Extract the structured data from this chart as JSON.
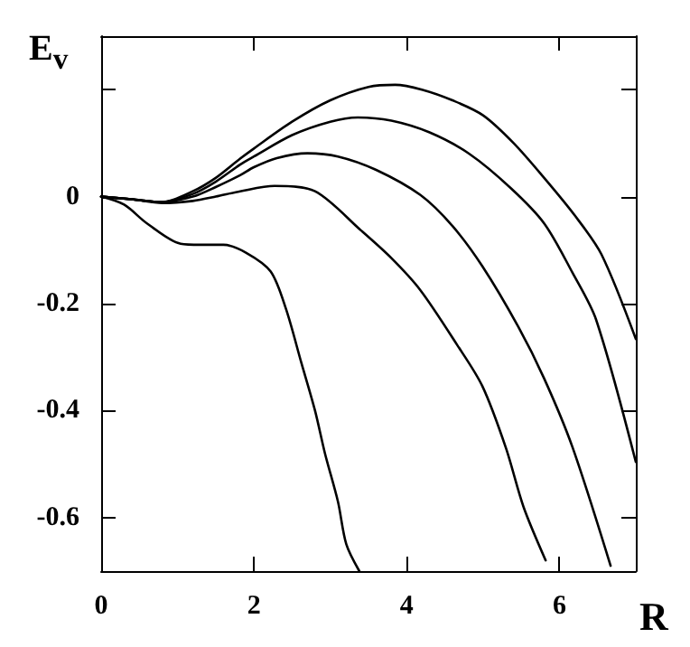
{
  "chart_data": {
    "type": "line",
    "xlabel": "R",
    "ylabel": "E$_{v}$",
    "xlim": [
      0,
      7
    ],
    "ylim": [
      -0.7,
      0.3
    ],
    "xticks": [
      0,
      2,
      4,
      6
    ],
    "yticks": [
      {
        "value": -0.6,
        "label": "-0.6"
      },
      {
        "value": -0.4,
        "label": "-0.4"
      },
      {
        "value": -0.2,
        "label": "-0.2"
      },
      0,
      {
        "value": 0.2,
        "label": null
      }
    ],
    "grid": false,
    "marker": "none",
    "line_style": "solid",
    "series": [
      {
        "color": "#000000",
        "x": [
          0,
          0.4,
          0.8,
          1.2,
          1.5,
          1.82,
          2,
          2.5,
          3,
          3.5,
          3.85,
          4.2,
          4.6,
          5,
          5.4,
          5.8,
          6.2,
          6.55,
          7
        ],
        "values": [
          0,
          -0.005,
          -0.01,
          0.01,
          0.035,
          0.071,
          0.09,
          0.14,
          0.18,
          0.205,
          0.209,
          0.2,
          0.18,
          0.152,
          0.1,
          0.035,
          -0.035,
          -0.108,
          -0.266
        ]
      },
      {
        "color": "#000000",
        "x": [
          0,
          0.4,
          0.8,
          1.2,
          1.5,
          1.82,
          2,
          2.5,
          3,
          3.36,
          3.8,
          4.3,
          4.82,
          5.37,
          5.8,
          6.17,
          6.48,
          7
        ],
        "values": [
          0,
          -0.005,
          -0.01,
          0.005,
          0.028,
          0.06,
          0.075,
          0.115,
          0.14,
          0.148,
          0.142,
          0.12,
          0.08,
          0.015,
          -0.05,
          -0.142,
          -0.23,
          -0.496
        ]
      },
      {
        "color": "#000000",
        "x": [
          0,
          0.4,
          0.8,
          1.2,
          1.5,
          1.82,
          2,
          2.3,
          2.7,
          3.1,
          3.6,
          4.18,
          4.6,
          4.99,
          5.46,
          5.8,
          6.17,
          6.67
        ],
        "values": [
          0,
          -0.005,
          -0.01,
          0.0,
          0.018,
          0.04,
          0.055,
          0.072,
          0.081,
          0.075,
          0.05,
          0.003,
          -0.055,
          -0.13,
          -0.243,
          -0.34,
          -0.468,
          -0.69
        ]
      },
      {
        "color": "#000000",
        "x": [
          0,
          0.4,
          0.8,
          1.2,
          1.5,
          1.82,
          2.27,
          2.8,
          3.4,
          3.8,
          4.18,
          4.66,
          4.99,
          5.3,
          5.53,
          5.82
        ],
        "values": [
          0,
          -0.005,
          -0.012,
          -0.008,
          0.0,
          0.01,
          0.02,
          0.01,
          -0.063,
          -0.115,
          -0.175,
          -0.277,
          -0.354,
          -0.47,
          -0.58,
          -0.68
        ]
      },
      {
        "color": "#000000",
        "x": [
          0,
          0.3,
          0.6,
          1.04,
          1.3,
          1.6,
          1.9,
          2.22,
          2.42,
          2.62,
          2.8,
          2.93,
          3.1,
          3.21,
          3.38
        ],
        "values": [
          0,
          -0.015,
          -0.05,
          -0.088,
          -0.09,
          -0.09,
          -0.105,
          -0.14,
          -0.21,
          -0.31,
          -0.4,
          -0.48,
          -0.57,
          -0.65,
          -0.7
        ]
      }
    ]
  }
}
